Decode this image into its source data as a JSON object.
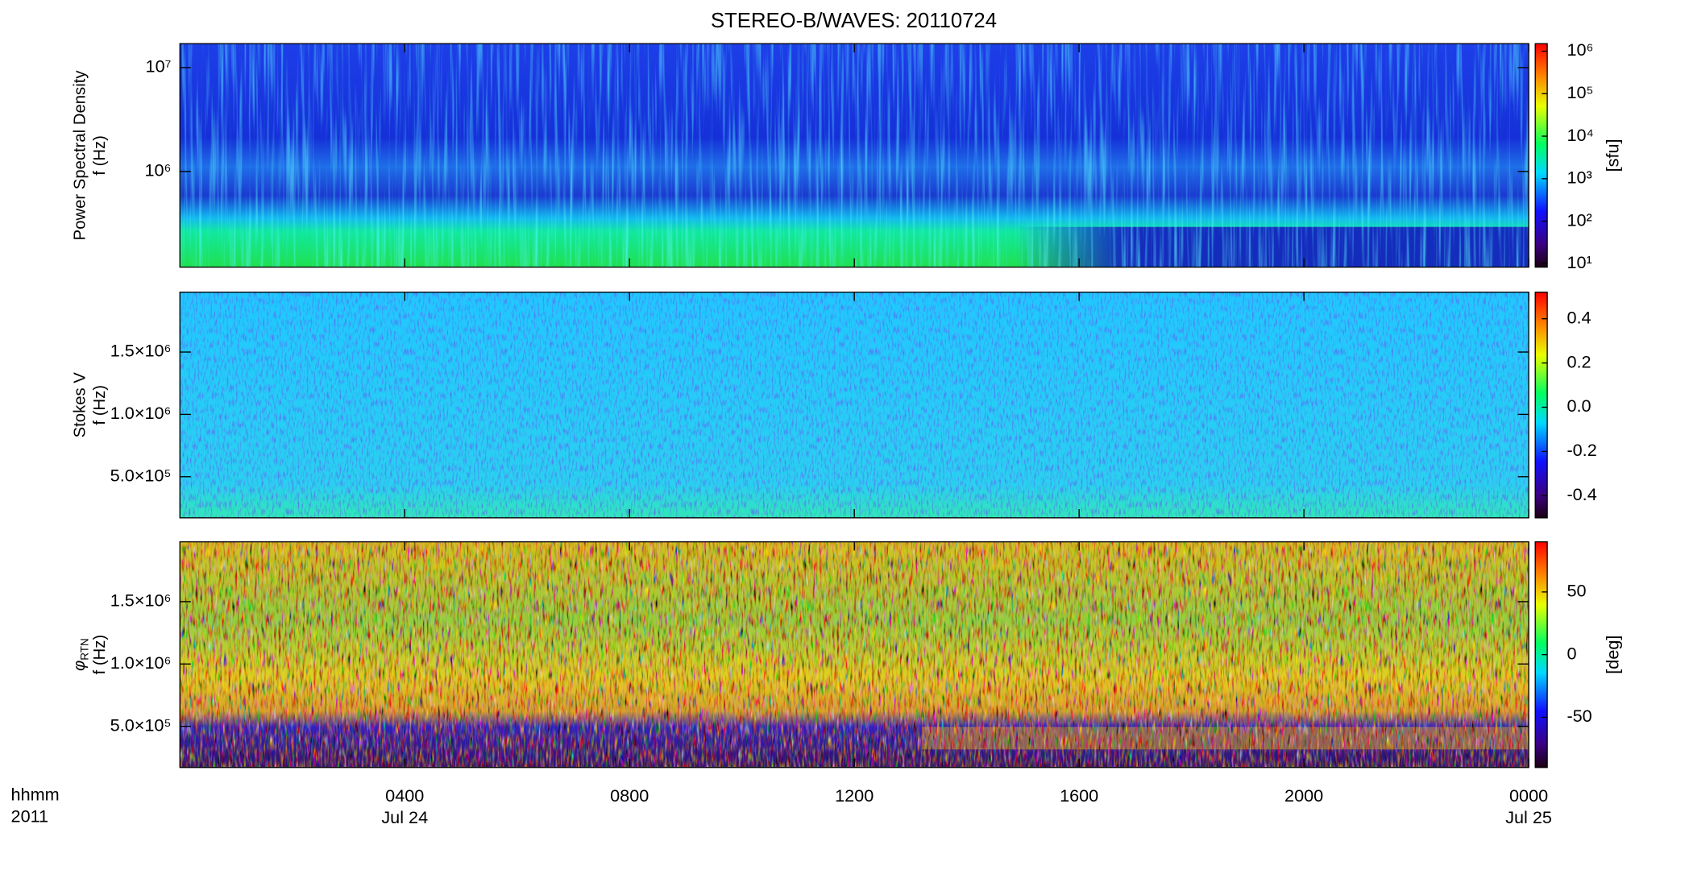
{
  "chart_data": {
    "type": "spectrogram",
    "title": "STEREO-B/WAVES: 20110724",
    "x_axis": {
      "xlim": [
        0,
        24
      ],
      "xticks": [
        {
          "value": 4,
          "label": "0400"
        },
        {
          "value": 8,
          "label": "0800"
        },
        {
          "value": 12,
          "label": "1200"
        },
        {
          "value": 16,
          "label": "1600"
        },
        {
          "value": 20,
          "label": "2000"
        },
        {
          "value": 24,
          "label": "0000"
        }
      ],
      "date_labels": [
        {
          "value": 4,
          "label": "Jul 24"
        },
        {
          "value": 24,
          "label": "Jul 25"
        }
      ],
      "unit_label": "hhmm",
      "year_label": "2011"
    },
    "panels": [
      {
        "ylabel": "Power Spectral Density",
        "ylabel_unit": "f (Hz)",
        "ylog": true,
        "ylim": [
          120000,
          17000000
        ],
        "yticks": [
          {
            "value": 1000000,
            "label": "10⁶"
          },
          {
            "value": 10000000,
            "label": "10⁷"
          }
        ],
        "colorbar": {
          "log": true,
          "clim": [
            8.3,
            1500000
          ],
          "label": "[sfu]",
          "cticks": [
            {
              "value": 10,
              "label": "10¹"
            },
            {
              "value": 100,
              "label": "10²"
            },
            {
              "value": 1000,
              "label": "10³"
            },
            {
              "value": 10000,
              "label": "10⁴"
            },
            {
              "value": 100000,
              "label": "10⁵"
            },
            {
              "value": 1000000,
              "label": "10⁶"
            }
          ]
        }
      },
      {
        "ylabel": "Stokes V",
        "ylabel_unit": "f (Hz)",
        "ylog": false,
        "ylim": [
          170000,
          1980000
        ],
        "yticks": [
          {
            "value": 500000,
            "label": "5.0×10⁵"
          },
          {
            "value": 1000000,
            "label": "1.0×10⁶"
          },
          {
            "value": 1500000,
            "label": "1.5×10⁶"
          }
        ],
        "colorbar": {
          "log": false,
          "clim": [
            -0.5,
            0.52
          ],
          "cticks": [
            -0.4,
            -0.2,
            {
              "value": 0,
              "label": "0.0"
            },
            0.2,
            0.4
          ]
        }
      },
      {
        "ylabel_symbol": "φ",
        "ylabel_subscript": "RTN",
        "ylabel_unit": "f (Hz)",
        "ylog": false,
        "ylim": [
          170000,
          1980000
        ],
        "yticks": [
          {
            "value": 500000,
            "label": "5.0×10⁵"
          },
          {
            "value": 1000000,
            "label": "1.0×10⁶"
          },
          {
            "value": 1500000,
            "label": "1.5×10⁶"
          }
        ],
        "colorbar": {
          "log": false,
          "clim": [
            -90,
            90
          ],
          "label": "[deg]",
          "cticks": [
            -50,
            0,
            50
          ]
        }
      }
    ]
  }
}
